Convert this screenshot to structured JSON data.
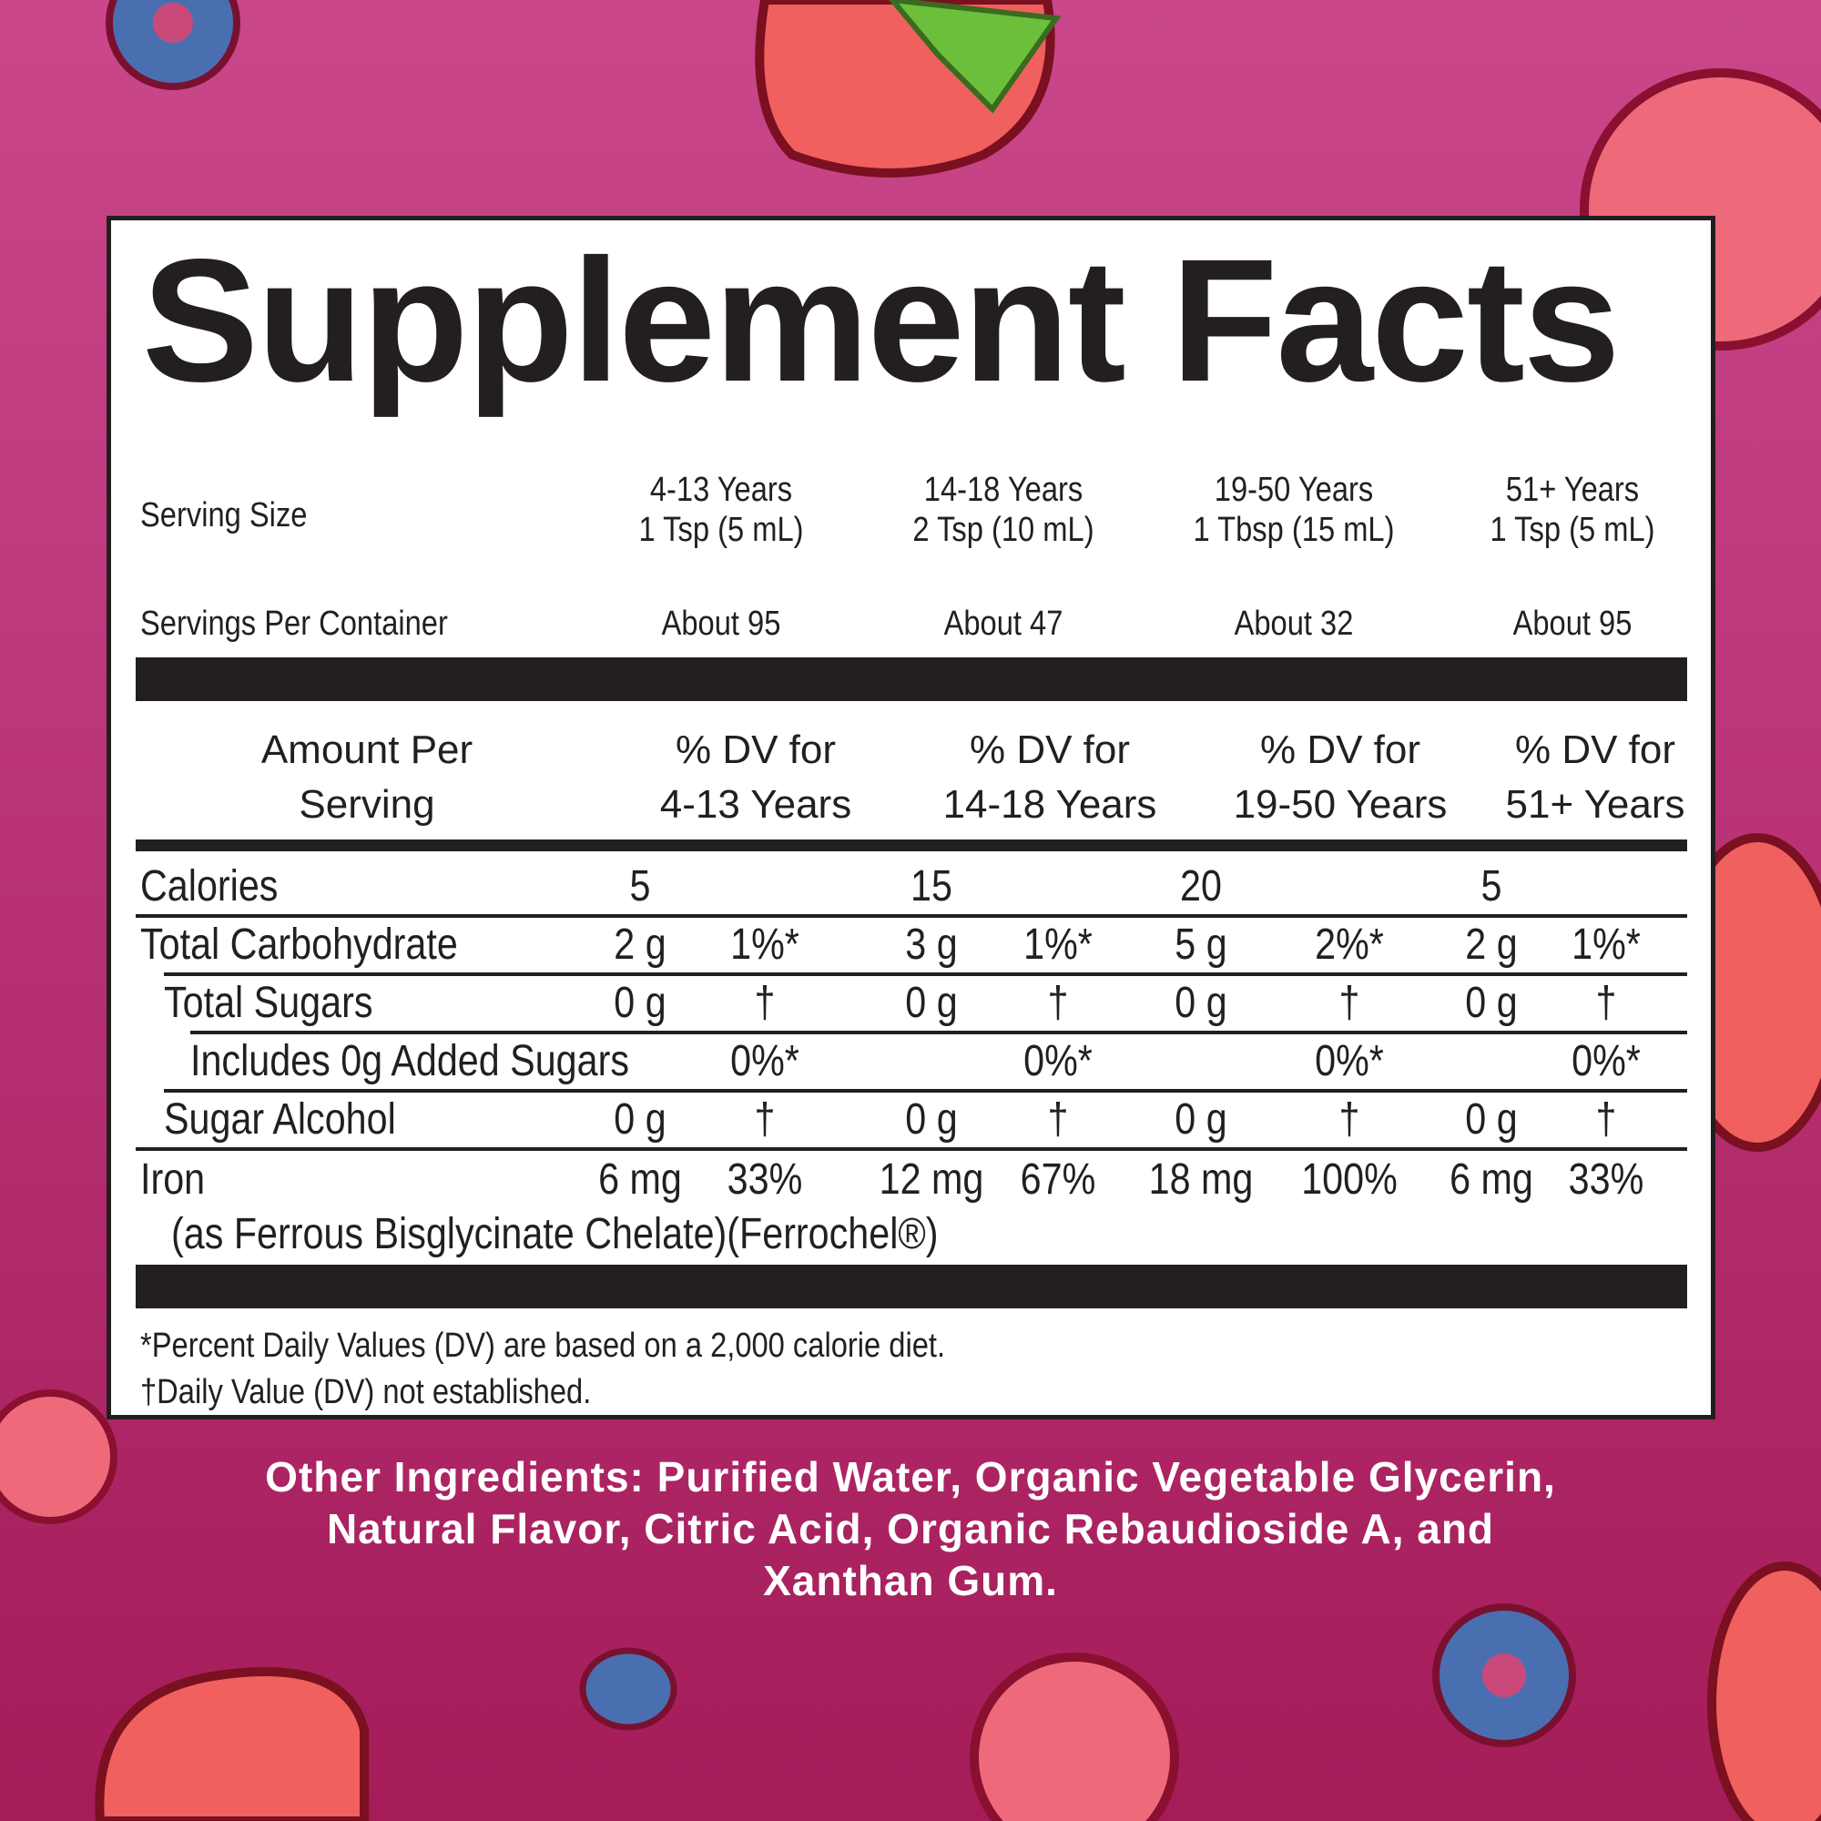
{
  "title": "Supplement Facts",
  "serving": {
    "label": "Serving Size",
    "per_container_label": "Servings Per Container",
    "columns": [
      {
        "age": "4-13 Years",
        "size": "1 Tsp (5 mL)",
        "servings": "About 95"
      },
      {
        "age": "14-18 Years",
        "size": "2 Tsp (10 mL)",
        "servings": "About 47"
      },
      {
        "age": "19-50 Years",
        "size": "1 Tbsp (15 mL)",
        "servings": "About 32"
      },
      {
        "age": "51+ Years",
        "size": "1 Tsp (5 mL)",
        "servings": "About 95"
      }
    ]
  },
  "header": {
    "amount_line1": "Amount Per",
    "amount_line2": "Serving",
    "dv": [
      {
        "l1": "% DV for",
        "l2": "4-13 Years"
      },
      {
        "l1": "% DV for",
        "l2": "14-18 Years"
      },
      {
        "l1": "% DV for",
        "l2": "19-50 Years"
      },
      {
        "l1": "% DV for",
        "l2": "51+ Years"
      }
    ]
  },
  "rows": [
    {
      "label": "Calories",
      "vals": [
        "5",
        "",
        "15",
        "",
        "20",
        "",
        "5",
        ""
      ]
    },
    {
      "label": "Total Carbohydrate",
      "vals": [
        "2 g",
        "1%*",
        "3 g",
        "1%*",
        "5 g",
        "2%*",
        "2 g",
        "1%*"
      ]
    },
    {
      "label": "Total Sugars",
      "vals": [
        "0 g",
        "†",
        "0 g",
        "†",
        "0 g",
        "†",
        "0 g",
        "†"
      ]
    },
    {
      "label": "Includes 0g Added Sugars",
      "vals": [
        "",
        "0%*",
        "",
        "0%*",
        "",
        "0%*",
        "",
        "0%*"
      ]
    },
    {
      "label": "Sugar Alcohol",
      "vals": [
        "0 g",
        "†",
        "0 g",
        "†",
        "0 g",
        "†",
        "0 g",
        "†"
      ]
    },
    {
      "label": "Iron",
      "sub": "(as Ferrous Bisglycinate Chelate)(Ferrochel®)",
      "vals": [
        "6 mg",
        "33%",
        "12 mg",
        "67%",
        "18 mg",
        "100%",
        "6 mg",
        "33%"
      ]
    }
  ],
  "footnotes": [
    "*Percent Daily Values (DV) are based on a 2,000 calorie diet.",
    "†Daily Value (DV) not established."
  ],
  "other_ingredients": [
    "Other Ingredients: Purified Water, Organic Vegetable Glycerin,",
    "Natural Flavor, Citric Acid, Organic Rebaudioside A, and",
    "Xanthan Gum."
  ],
  "colors": {
    "background_top": "#c9478a",
    "background_bottom": "#a41c58",
    "text": "#231f20",
    "fruit_red": "#f0605e",
    "blueberry": "#4a6fb0"
  }
}
